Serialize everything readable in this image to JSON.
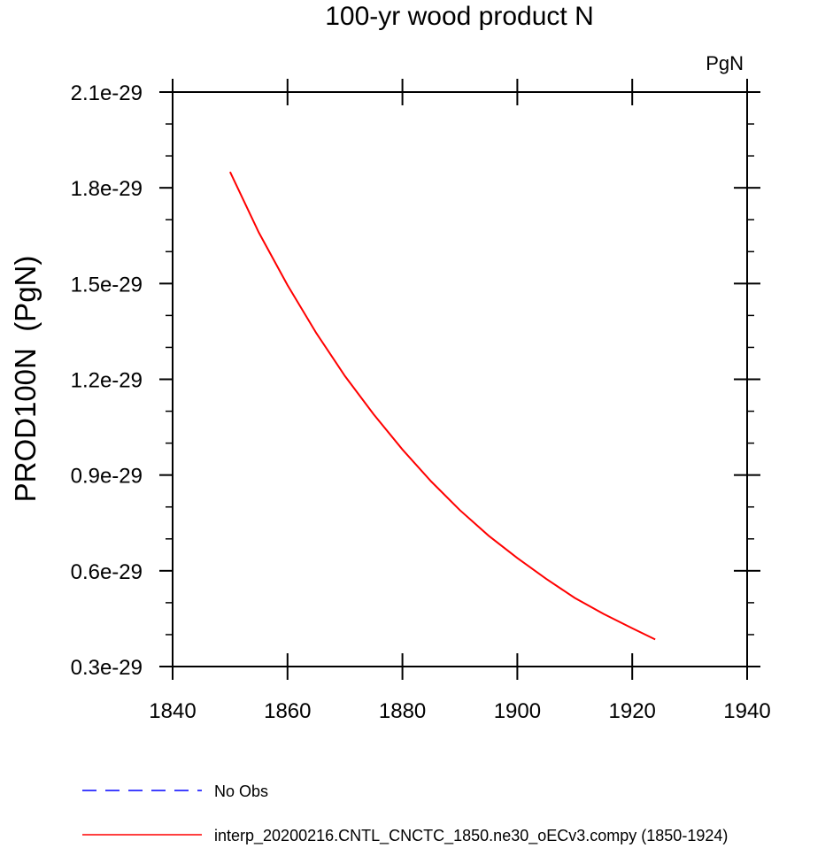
{
  "chart_data": {
    "type": "line",
    "title": "100-yr wood product N",
    "units_label": "PgN",
    "ylabel": "PROD100N  (PgN)",
    "xlabel": "",
    "xlim": [
      1840,
      1940
    ],
    "ylim": [
      3e-30,
      2.1e-29
    ],
    "x_ticks": [
      1840,
      1860,
      1880,
      1900,
      1920,
      1940
    ],
    "x_tick_labels": [
      "1840",
      "1860",
      "1880",
      "1900",
      "1920",
      "1940"
    ],
    "y_ticks": [
      3e-30,
      6e-30,
      9e-30,
      1.2e-29,
      1.5e-29,
      1.8e-29,
      2.1e-29
    ],
    "y_tick_labels": [
      "0.3e-29",
      "0.6e-29",
      "0.9e-29",
      "1.2e-29",
      "1.5e-29",
      "1.8e-29",
      "2.1e-29"
    ],
    "grid": false,
    "legend_position": "bottom",
    "series": [
      {
        "name": "No Obs",
        "color": "#0000ff",
        "dash": true,
        "x": [],
        "y": []
      },
      {
        "name": "interp_20200216.CNTL_CNCTC_1850.ne30_oECv3.compy (1850-1924)",
        "color": "#ff0000",
        "dash": false,
        "x": [
          1850,
          1855,
          1860,
          1865,
          1870,
          1875,
          1880,
          1885,
          1890,
          1895,
          1900,
          1905,
          1910,
          1915,
          1920,
          1924
        ],
        "y": [
          1.85e-29,
          1.66e-29,
          1.495e-29,
          1.345e-29,
          1.21e-29,
          1.09e-29,
          9.8e-30,
          8.8e-30,
          7.9e-30,
          7.1e-30,
          6.4e-30,
          5.75e-30,
          5.15e-30,
          4.65e-30,
          4.2e-30,
          3.85e-30
        ]
      }
    ]
  }
}
